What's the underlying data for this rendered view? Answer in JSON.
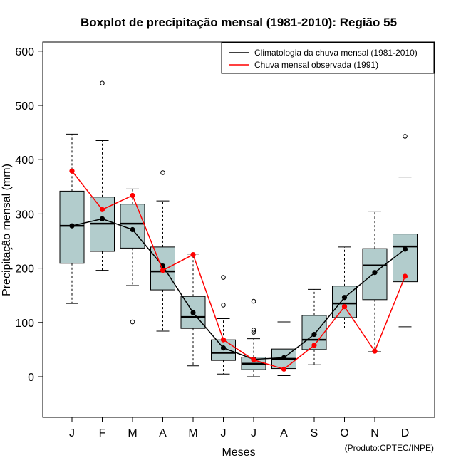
{
  "chart_data": {
    "type": "boxplot",
    "title": "Boxplot de precipitação mensal (1981-2010): Região 55",
    "xlabel": "Meses",
    "ylabel": "Precipitação mensal (mm)",
    "ylim": [
      -75,
      620
    ],
    "yticks": [
      0,
      100,
      200,
      300,
      400,
      500,
      600
    ],
    "categories": [
      "J",
      "F",
      "M",
      "A",
      "M",
      "J",
      "J",
      "A",
      "S",
      "O",
      "N",
      "D"
    ],
    "boxes": [
      {
        "whisker_low": 135,
        "q1": 209,
        "median": 278,
        "q3": 342,
        "whisker_high": 447,
        "outliers": []
      },
      {
        "whisker_low": 196,
        "q1": 231,
        "median": 282,
        "q3": 331,
        "whisker_high": 435,
        "outliers": [
          541
        ]
      },
      {
        "whisker_low": 168,
        "q1": 237,
        "median": 282,
        "q3": 318,
        "whisker_high": 346,
        "outliers": [
          101
        ]
      },
      {
        "whisker_low": 84,
        "q1": 160,
        "median": 194,
        "q3": 239,
        "whisker_high": 324,
        "outliers": [
          376
        ]
      },
      {
        "whisker_low": 20,
        "q1": 89,
        "median": 110,
        "q3": 148,
        "whisker_high": 226,
        "outliers": []
      },
      {
        "whisker_low": 5,
        "q1": 30,
        "median": 44,
        "q3": 68,
        "whisker_high": 107,
        "outliers": [
          132,
          183
        ]
      },
      {
        "whisker_low": 0,
        "q1": 13,
        "median": 24,
        "q3": 36,
        "whisker_high": 70,
        "outliers": [
          82,
          86,
          139
        ]
      },
      {
        "whisker_low": 2,
        "q1": 15,
        "median": 33,
        "q3": 51,
        "whisker_high": 101,
        "outliers": []
      },
      {
        "whisker_low": 22,
        "q1": 50,
        "median": 68,
        "q3": 113,
        "whisker_high": 161,
        "outliers": []
      },
      {
        "whisker_low": 86,
        "q1": 109,
        "median": 135,
        "q3": 167,
        "whisker_high": 239,
        "outliers": []
      },
      {
        "whisker_low": 46,
        "q1": 142,
        "median": 205,
        "q3": 236,
        "whisker_high": 305,
        "outliers": []
      },
      {
        "whisker_low": 92,
        "q1": 175,
        "median": 240,
        "q3": 263,
        "whisker_high": 368,
        "outliers": [
          443
        ]
      }
    ],
    "series": [
      {
        "name": "Climatologia da chuva mensal (1981-2010)",
        "color": "#000000",
        "values": [
          278,
          291,
          271,
          204,
          118,
          53,
          32,
          35,
          78,
          146,
          192,
          235
        ]
      },
      {
        "name": "Chuva mensal observada (1991)",
        "color": "#ff0000",
        "values": [
          379,
          308,
          334,
          196,
          225,
          68,
          31,
          14,
          58,
          129,
          47,
          185
        ]
      }
    ],
    "box_color": "#b2cccc",
    "legend_position": "top-right"
  },
  "credit": "(Produto:CPTEC/INPE)"
}
